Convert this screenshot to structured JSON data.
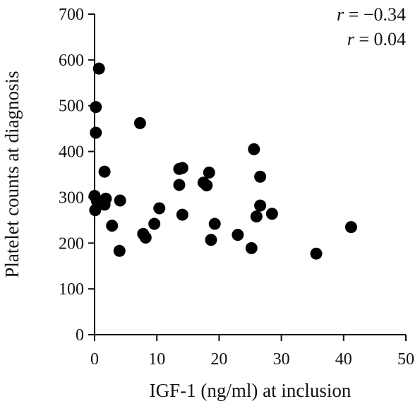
{
  "chart_data": {
    "type": "scatter",
    "xlabel": "IGF-1 (ng/ml) at inclusion",
    "ylabel": "Platelet counts at diagnosis",
    "xlim": [
      0,
      50
    ],
    "ylim": [
      0,
      700
    ],
    "x_ticks": [
      "0",
      "10",
      "20",
      "30",
      "40",
      "50"
    ],
    "y_ticks": [
      "0",
      "100",
      "200",
      "300",
      "400",
      "500",
      "600",
      "700"
    ],
    "grid": false,
    "legend": "none",
    "marker_color": "#000000",
    "annotations": [
      {
        "symbol": "r",
        "text": " = −0.34"
      },
      {
        "symbol": "r",
        "text": " = 0.04"
      }
    ],
    "points": [
      {
        "x": 0.7,
        "y": 581
      },
      {
        "x": 0.2,
        "y": 497
      },
      {
        "x": 0.2,
        "y": 441
      },
      {
        "x": 0.0,
        "y": 303
      },
      {
        "x": 0.1,
        "y": 272
      },
      {
        "x": 0.4,
        "y": 291
      },
      {
        "x": 1.6,
        "y": 356
      },
      {
        "x": 1.5,
        "y": 291
      },
      {
        "x": 1.6,
        "y": 284
      },
      {
        "x": 1.8,
        "y": 297
      },
      {
        "x": 2.8,
        "y": 238
      },
      {
        "x": 4.0,
        "y": 183
      },
      {
        "x": 4.1,
        "y": 293
      },
      {
        "x": 7.3,
        "y": 462
      },
      {
        "x": 7.8,
        "y": 220
      },
      {
        "x": 8.2,
        "y": 212
      },
      {
        "x": 9.6,
        "y": 242
      },
      {
        "x": 10.4,
        "y": 276
      },
      {
        "x": 13.6,
        "y": 362
      },
      {
        "x": 14.1,
        "y": 364
      },
      {
        "x": 13.6,
        "y": 327
      },
      {
        "x": 14.1,
        "y": 262
      },
      {
        "x": 17.5,
        "y": 332
      },
      {
        "x": 18.0,
        "y": 326
      },
      {
        "x": 18.4,
        "y": 354
      },
      {
        "x": 18.7,
        "y": 207
      },
      {
        "x": 19.3,
        "y": 242
      },
      {
        "x": 23.0,
        "y": 218
      },
      {
        "x": 25.2,
        "y": 189
      },
      {
        "x": 25.6,
        "y": 405
      },
      {
        "x": 26.0,
        "y": 258
      },
      {
        "x": 26.6,
        "y": 345
      },
      {
        "x": 26.6,
        "y": 282
      },
      {
        "x": 28.5,
        "y": 264
      },
      {
        "x": 35.6,
        "y": 177
      },
      {
        "x": 41.2,
        "y": 235
      }
    ]
  }
}
